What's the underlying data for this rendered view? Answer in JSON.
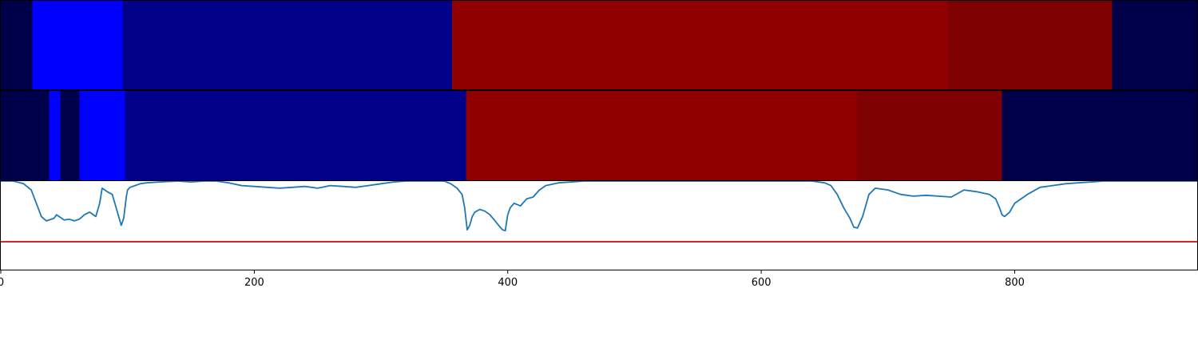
{
  "chart_data": {
    "type": "line",
    "title": "",
    "xlabel": "",
    "ylabel": "",
    "xlim": [
      0,
      944
    ],
    "ylim": [
      0,
      1
    ],
    "xticks": [
      0,
      200,
      400,
      600,
      800
    ],
    "xtick_labels": [
      "0",
      "200",
      "400",
      "600",
      "800"
    ],
    "grid": false,
    "legend": "none",
    "segment_tracks": [
      {
        "name": "",
        "segments": [
          {
            "start": 0,
            "end": 25,
            "color": "#00004a"
          },
          {
            "start": 25,
            "end": 96,
            "color": "#0000ff"
          },
          {
            "start": 96,
            "end": 356,
            "color": "#000088"
          },
          {
            "start": 356,
            "end": 747,
            "color": "#900000"
          },
          {
            "start": 747,
            "end": 877,
            "color": "#7e0000"
          },
          {
            "start": 877,
            "end": 944,
            "color": "#00004a"
          }
        ]
      },
      {
        "name": "",
        "segments": [
          {
            "start": 0,
            "end": 38,
            "color": "#00004a"
          },
          {
            "start": 38,
            "end": 47,
            "color": "#0000ff"
          },
          {
            "start": 47,
            "end": 62,
            "color": "#00004a"
          },
          {
            "start": 62,
            "end": 98,
            "color": "#0000ff"
          },
          {
            "start": 98,
            "end": 367,
            "color": "#000088"
          },
          {
            "start": 367,
            "end": 676,
            "color": "#900000"
          },
          {
            "start": 676,
            "end": 790,
            "color": "#7e0000"
          },
          {
            "start": 790,
            "end": 944,
            "color": "#00004a"
          }
        ]
      }
    ],
    "series": [
      {
        "name": "",
        "color": "#1f77b4",
        "x": [
          0,
          10,
          18,
          24,
          32,
          36,
          42,
          44,
          48,
          50,
          54,
          58,
          62,
          66,
          70,
          75,
          78,
          80,
          84,
          88,
          92,
          95,
          97,
          99,
          100,
          102,
          106,
          110,
          115,
          125,
          140,
          150,
          160,
          170,
          180,
          190,
          200,
          210,
          220,
          230,
          240,
          250,
          260,
          270,
          280,
          290,
          300,
          310,
          320,
          330,
          340,
          350,
          355,
          360,
          364,
          366,
          368,
          370,
          372,
          374,
          378,
          382,
          386,
          390,
          394,
          396,
          398,
          400,
          402,
          405,
          410,
          415,
          420,
          425,
          430,
          440,
          460,
          500,
          550,
          600,
          640,
          650,
          655,
          660,
          665,
          670,
          673,
          676,
          680,
          685,
          690,
          700,
          710,
          720,
          730,
          740,
          750,
          760,
          770,
          780,
          785,
          788,
          790,
          792,
          796,
          800,
          810,
          820,
          830,
          840,
          850,
          860,
          870,
          880,
          900,
          920,
          944
        ],
        "y": [
          1.0,
          1.0,
          0.97,
          0.9,
          0.6,
          0.55,
          0.58,
          0.62,
          0.58,
          0.56,
          0.57,
          0.55,
          0.57,
          0.62,
          0.65,
          0.6,
          0.75,
          0.92,
          0.88,
          0.85,
          0.65,
          0.5,
          0.58,
          0.82,
          0.9,
          0.93,
          0.95,
          0.97,
          0.98,
          0.99,
          1.0,
          0.99,
          1.0,
          1.0,
          0.98,
          0.95,
          0.94,
          0.93,
          0.92,
          0.93,
          0.94,
          0.92,
          0.95,
          0.94,
          0.93,
          0.95,
          0.97,
          0.99,
          1.0,
          1.0,
          1.0,
          1.0,
          0.97,
          0.92,
          0.85,
          0.7,
          0.45,
          0.5,
          0.6,
          0.65,
          0.68,
          0.66,
          0.62,
          0.55,
          0.48,
          0.45,
          0.44,
          0.62,
          0.7,
          0.75,
          0.72,
          0.8,
          0.82,
          0.9,
          0.95,
          0.98,
          1.0,
          1.0,
          1.0,
          1.0,
          1.0,
          0.98,
          0.95,
          0.85,
          0.7,
          0.58,
          0.48,
          0.47,
          0.6,
          0.85,
          0.92,
          0.9,
          0.85,
          0.83,
          0.84,
          0.83,
          0.82,
          0.9,
          0.88,
          0.85,
          0.8,
          0.7,
          0.62,
          0.6,
          0.65,
          0.75,
          0.85,
          0.93,
          0.95,
          0.97,
          0.98,
          0.99,
          1.0,
          1.0,
          1.0,
          1.0,
          1.0
        ],
        "style": "line"
      },
      {
        "name": "",
        "color": "#d62728",
        "x": [
          0,
          944
        ],
        "y": [
          0.315,
          0.315
        ],
        "style": "hline"
      }
    ]
  }
}
